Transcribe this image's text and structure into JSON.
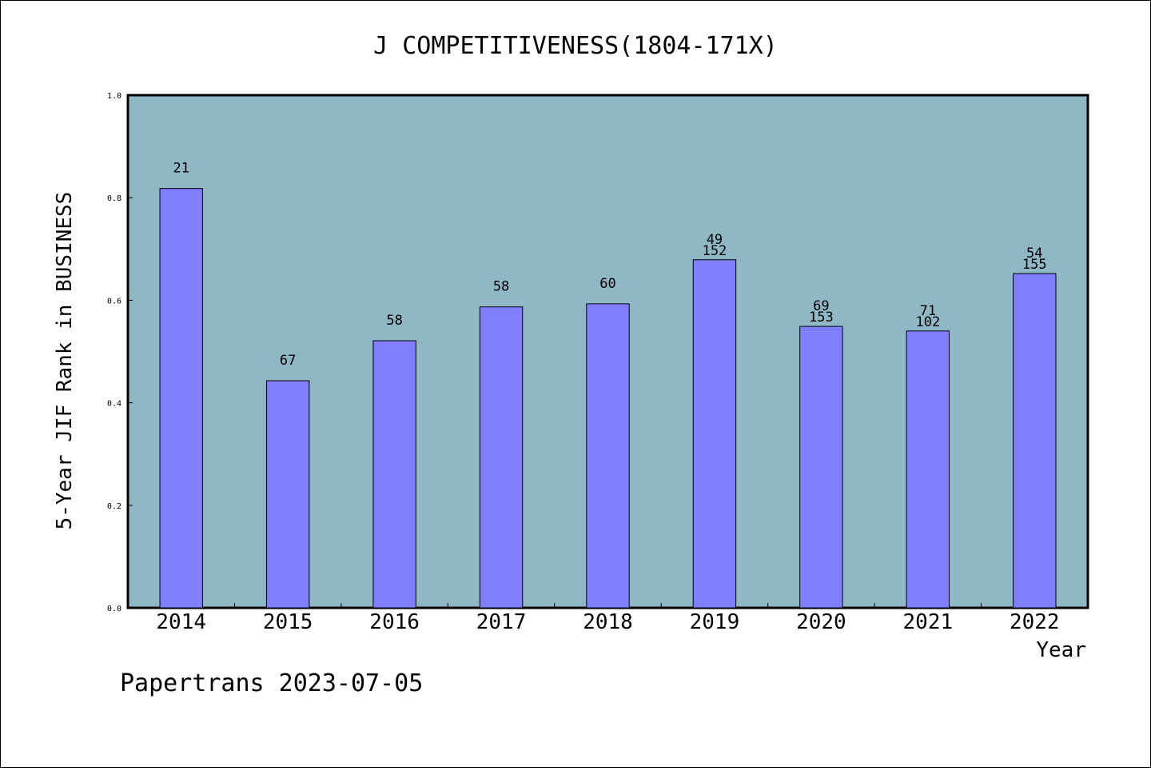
{
  "chart_data": {
    "type": "bar",
    "title": "J COMPETITIVENESS(1804-171X)",
    "xlabel": "Year",
    "ylabel": "5-Year JIF Rank in BUSINESS",
    "ylim": [
      0,
      1.0
    ],
    "yticks": [
      "0.0",
      "0.2",
      "0.4",
      "0.6",
      "0.8",
      "1.0"
    ],
    "categories": [
      "2014",
      "2015",
      "2016",
      "2017",
      "2018",
      "2019",
      "2020",
      "2021",
      "2022"
    ],
    "values": [
      0.818,
      0.443,
      0.521,
      0.587,
      0.593,
      0.679,
      0.549,
      0.54,
      0.652
    ],
    "labels": [
      [
        "21"
      ],
      [
        "67"
      ],
      [
        "58"
      ],
      [
        "58"
      ],
      [
        "60"
      ],
      [
        "49",
        "152"
      ],
      [
        "69",
        "153"
      ],
      [
        "71",
        "102"
      ],
      [
        "54",
        "155"
      ]
    ],
    "plot_background": "#8fb7c6",
    "bar_color": "#7f7fff",
    "grid": false
  },
  "footer": "Papertrans 2023-07-05"
}
